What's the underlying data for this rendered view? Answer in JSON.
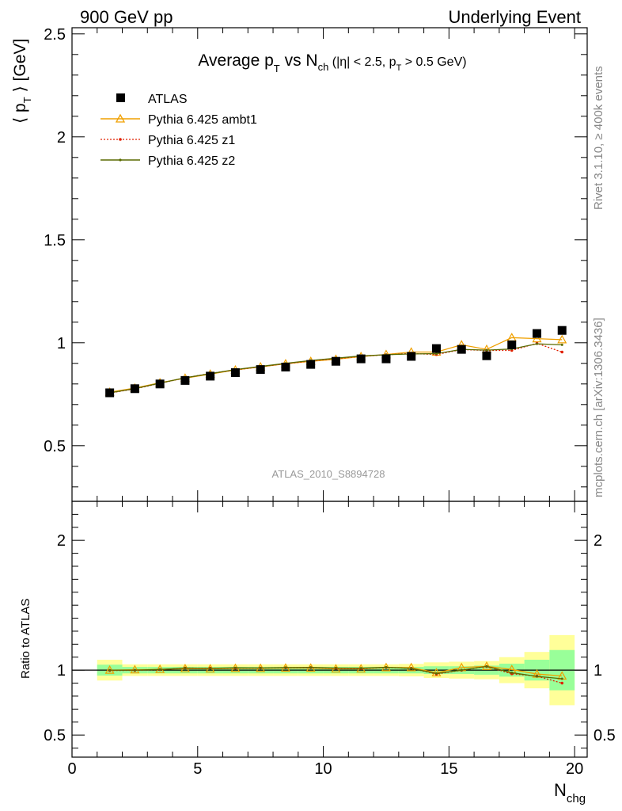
{
  "header": {
    "left": "900 GeV pp",
    "right": "Underlying Event"
  },
  "side": {
    "rivet": "Rivet 3.1.10, ≥ 400k events",
    "mcplots": "mcplots.cern.ch [arXiv:1306.3436]"
  },
  "analysis_tag": "ATLAS_2010_S8894728",
  "title": {
    "part1": "Average p",
    "sub1": "T",
    "part2": " vs N",
    "sub2": "ch",
    "part3": " (|η| < 2.5, p",
    "sub3": "T",
    "part4": " > 0.5 GeV)"
  },
  "ylabel_top": {
    "left": "⟨ p",
    "sub": "T",
    "right": " ⟩ [GeV]"
  },
  "ylabel_bottom": "Ratio to ATLAS",
  "xlabel": {
    "main": "N",
    "sub": "chg"
  },
  "legend": {
    "atlas": "ATLAS",
    "ambt1": "Pythia 6.425 ambt1",
    "z1": "Pythia 6.425 z1",
    "z2": "Pythia 6.425 z2"
  },
  "colors": {
    "atlas": "#000000",
    "ambt1": "#f0a000",
    "z1": "#e02000",
    "z2": "#5a6a00",
    "band_inner": "#99ff99",
    "band_outer": "#ffff99"
  },
  "chart_data": {
    "type": "scatter",
    "x": [
      1.5,
      2.5,
      3.5,
      4.5,
      5.5,
      6.5,
      7.5,
      8.5,
      9.5,
      10.5,
      11.5,
      12.5,
      13.5,
      14.5,
      15.5,
      16.5,
      17.5,
      18.5,
      19.5
    ],
    "xlim": [
      0,
      20.5
    ],
    "xticks": [
      0,
      5,
      10,
      15,
      20
    ],
    "main": {
      "ylim": [
        0.23,
        2.53
      ],
      "yticks": [
        0.5,
        1,
        1.5,
        2,
        2.5
      ],
      "series": [
        {
          "name": "ATLAS",
          "values": [
            0.757,
            0.777,
            0.8,
            0.817,
            0.838,
            0.855,
            0.87,
            0.882,
            0.895,
            0.91,
            0.922,
            0.922,
            0.934,
            0.972,
            0.968,
            0.937,
            0.99,
            1.045,
            1.06
          ],
          "errors": [
            0.005,
            0.005,
            0.005,
            0.005,
            0.005,
            0.005,
            0.006,
            0.006,
            0.006,
            0.007,
            0.008,
            0.008,
            0.009,
            0.01,
            0.012,
            0.014,
            0.016,
            0.018,
            0.02
          ]
        },
        {
          "name": "Pythia 6.425 ambt1",
          "values": [
            0.76,
            0.78,
            0.806,
            0.828,
            0.848,
            0.868,
            0.883,
            0.898,
            0.91,
            0.92,
            0.933,
            0.943,
            0.955,
            0.955,
            0.99,
            0.968,
            1.025,
            1.02,
            1.015
          ]
        },
        {
          "name": "Pythia 6.425 z1",
          "values": [
            0.756,
            0.776,
            0.803,
            0.83,
            0.851,
            0.868,
            0.884,
            0.898,
            0.912,
            0.923,
            0.934,
            0.942,
            0.948,
            0.943,
            0.967,
            0.963,
            0.963,
            0.997,
            0.955
          ]
        },
        {
          "name": "Pythia 6.425 z2",
          "values": [
            0.757,
            0.777,
            0.804,
            0.83,
            0.85,
            0.87,
            0.885,
            0.9,
            0.914,
            0.925,
            0.936,
            0.942,
            0.946,
            0.947,
            0.968,
            0.964,
            0.97,
            0.995,
            0.99
          ]
        }
      ]
    },
    "ratio": {
      "ylim": [
        0.33,
        2.3
      ],
      "yticks": [
        0.5,
        1,
        2
      ],
      "band_inner": [
        0.042,
        0.025,
        0.025,
        0.025,
        0.025,
        0.025,
        0.025,
        0.025,
        0.025,
        0.025,
        0.025,
        0.025,
        0.025,
        0.03,
        0.03,
        0.035,
        0.05,
        0.08,
        0.155
      ],
      "band_outer": [
        0.08,
        0.045,
        0.045,
        0.045,
        0.045,
        0.045,
        0.045,
        0.045,
        0.045,
        0.045,
        0.045,
        0.045,
        0.048,
        0.06,
        0.065,
        0.07,
        0.1,
        0.14,
        0.27
      ],
      "series": [
        {
          "name": "Pythia 6.425 ambt1",
          "values": [
            1.0,
            1.003,
            1.006,
            1.012,
            1.01,
            1.014,
            1.014,
            1.016,
            1.016,
            1.01,
            1.01,
            1.02,
            1.02,
            0.98,
            1.02,
            1.03,
            1.005,
            0.97,
            0.955
          ]
        },
        {
          "name": "Pythia 6.425 z1",
          "values": [
            0.997,
            0.998,
            1.004,
            1.016,
            1.015,
            1.015,
            1.016,
            1.018,
            1.019,
            1.014,
            1.012,
            1.02,
            1.014,
            0.97,
            0.999,
            1.028,
            0.972,
            0.954,
            0.9
          ]
        },
        {
          "name": "Pythia 6.425 z2",
          "values": [
            1.0,
            1.0,
            1.005,
            1.016,
            1.014,
            1.018,
            1.017,
            1.02,
            1.021,
            1.016,
            1.015,
            1.022,
            1.013,
            0.974,
            1.0,
            1.029,
            0.98,
            0.952,
            0.934
          ]
        }
      ]
    }
  }
}
